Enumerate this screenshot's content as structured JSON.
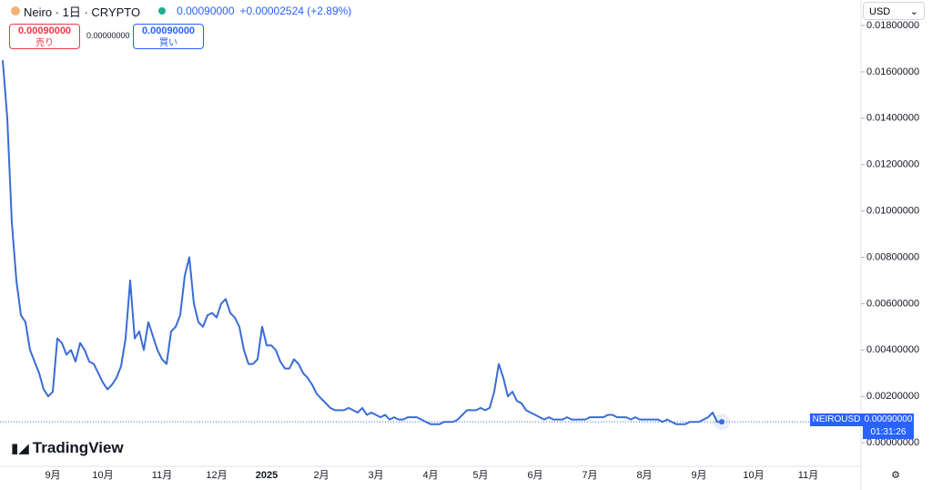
{
  "header": {
    "symbol": "Neiro · 1日 · CRYPTO",
    "last": "0.00090000",
    "change": "+0.00002524 (+2.89%)",
    "sell_price": "0.00090000",
    "sell_label": "売り",
    "spread": "0.00000000",
    "buy_price": "0.00090000",
    "buy_label": "買い",
    "currency": "USD"
  },
  "price_tag": {
    "symbol": "NEIROUSD",
    "price": "0.00090000",
    "countdown": "01:31:26"
  },
  "brand": "TradingView",
  "chart_data": {
    "type": "line",
    "color": "#3a6bd6",
    "last_value": 0.0009,
    "ylim": [
      -0.00094,
      0.0191
    ],
    "yticks": [
      {
        "value": 0,
        "label": "0.00000000"
      },
      {
        "value": 0.002,
        "label": "0.00200000"
      },
      {
        "value": 0.004,
        "label": "0.00400000"
      },
      {
        "value": 0.006,
        "label": "0.00600000"
      },
      {
        "value": 0.008,
        "label": "0.00800000"
      },
      {
        "value": 0.01,
        "label": "0.01000000"
      },
      {
        "value": 0.012,
        "label": "0.01200000"
      },
      {
        "value": 0.014,
        "label": "0.01400000"
      },
      {
        "value": 0.016,
        "label": "0.01600000"
      },
      {
        "value": 0.018,
        "label": "0.01800000"
      }
    ],
    "categories": [
      null,
      null,
      null,
      null,
      null,
      null,
      null,
      null,
      null,
      null,
      null,
      "9月",
      null,
      null,
      null,
      null,
      null,
      null,
      null,
      null,
      null,
      null,
      "10月",
      null,
      null,
      null,
      null,
      null,
      null,
      null,
      null,
      null,
      null,
      null,
      null,
      "11月",
      null,
      null,
      null,
      null,
      null,
      null,
      null,
      null,
      null,
      null,
      null,
      "12月",
      null,
      null,
      null,
      null,
      null,
      null,
      null,
      null,
      null,
      null,
      "2025",
      null,
      null,
      null,
      null,
      null,
      null,
      null,
      null,
      null,
      null,
      null,
      "2月",
      null,
      null,
      null,
      null,
      null,
      null,
      null,
      null,
      null,
      null,
      null,
      "3月",
      null,
      null,
      null,
      null,
      null,
      null,
      null,
      null,
      null,
      null,
      null,
      "4月",
      null,
      null,
      null,
      null,
      null,
      null,
      null,
      null,
      null,
      null,
      "5月",
      null,
      null,
      null,
      null,
      null,
      null,
      null,
      null,
      null,
      null,
      null,
      "6月",
      null,
      null,
      null,
      null,
      null,
      null,
      null,
      null,
      null,
      null,
      null,
      "7月",
      null,
      null,
      null,
      null,
      null,
      null,
      null,
      null,
      null,
      null,
      null,
      "8月",
      null,
      null,
      null,
      null,
      null,
      null,
      null,
      null,
      null,
      null,
      null,
      "9月",
      null,
      null,
      null,
      null,
      null,
      null,
      null,
      null,
      null,
      null,
      null,
      "10月",
      null,
      null,
      null,
      null,
      null,
      null,
      null,
      null,
      null,
      null,
      null,
      "11月",
      null,
      null,
      null,
      null,
      null,
      null,
      null,
      null,
      null,
      null,
      null
    ],
    "values": [
      0.0165,
      0.014,
      0.0095,
      0.007,
      0.0055,
      0.0052,
      0.004,
      0.0035,
      0.003,
      0.0023,
      0.002,
      0.0022,
      0.0045,
      0.0043,
      0.0038,
      0.004,
      0.0035,
      0.0043,
      0.004,
      0.0035,
      0.0034,
      0.003,
      0.0026,
      0.0023,
      0.0025,
      0.0028,
      0.0033,
      0.0045,
      0.007,
      0.0045,
      0.0048,
      0.004,
      0.0052,
      0.0046,
      0.004,
      0.0036,
      0.0034,
      0.0048,
      0.005,
      0.0055,
      0.0072,
      0.008,
      0.006,
      0.0052,
      0.005,
      0.0055,
      0.0056,
      0.0054,
      0.006,
      0.0062,
      0.0056,
      0.0054,
      0.005,
      0.004,
      0.0034,
      0.0034,
      0.0036,
      0.005,
      0.0042,
      0.0042,
      0.004,
      0.0035,
      0.0032,
      0.0032,
      0.0036,
      0.0034,
      0.003,
      0.0028,
      0.0025,
      0.0021,
      0.0019,
      0.0017,
      0.0015,
      0.0014,
      0.0014,
      0.0014,
      0.0015,
      0.0014,
      0.0013,
      0.0015,
      0.0012,
      0.0013,
      0.0012,
      0.0011,
      0.0012,
      0.001,
      0.0011,
      0.001,
      0.001,
      0.0011,
      0.0011,
      0.0011,
      0.001,
      0.0009,
      0.0008,
      0.0008,
      0.0008,
      0.0009,
      0.0009,
      0.0009,
      0.001,
      0.0012,
      0.0014,
      0.0014,
      0.0014,
      0.0015,
      0.0014,
      0.0015,
      0.0022,
      0.0034,
      0.0028,
      0.002,
      0.0022,
      0.0018,
      0.0017,
      0.0014,
      0.0013,
      0.0012,
      0.0011,
      0.001,
      0.0011,
      0.001,
      0.001,
      0.001,
      0.0011,
      0.001,
      0.001,
      0.001,
      0.001,
      0.0011,
      0.0011,
      0.0011,
      0.0011,
      0.0012,
      0.0012,
      0.0011,
      0.0011,
      0.0011,
      0.001,
      0.0011,
      0.001,
      0.001,
      0.001,
      0.001,
      0.001,
      0.0009,
      0.001,
      0.0009,
      0.0008,
      0.0008,
      0.0008,
      0.0009,
      0.0009,
      0.0009,
      0.001,
      0.0011,
      0.0013,
      0.0009,
      0.0009,
      null,
      null,
      null,
      null,
      null,
      null,
      null,
      null,
      null,
      null,
      null,
      null,
      null,
      null,
      null,
      null,
      null,
      null,
      null,
      null,
      null,
      null,
      null,
      null,
      null,
      null,
      null,
      null,
      null,
      null
    ]
  }
}
